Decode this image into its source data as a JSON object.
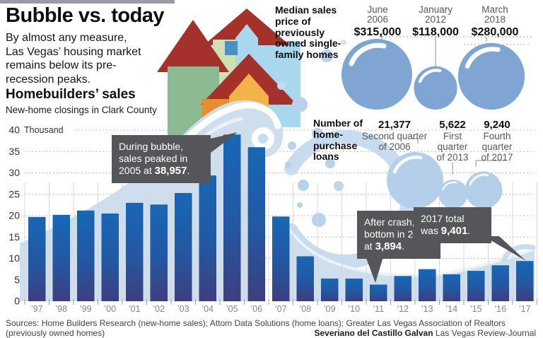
{
  "title": "Bubble vs. today",
  "subtitle": "By almost any measure, Las Vegas’ housing market remains below its pre-recession peaks.",
  "homebuilders": {
    "heading": "Homebuilders’ sales",
    "subheading": "New-home closings in Clark County"
  },
  "colors": {
    "bar_top": "#1767b6",
    "bar_bottom": "#3e3e7f",
    "price_bubble": "#7fa5d3",
    "loans_bubble": "#b5cee9",
    "annotation_bg": "#55565a",
    "roof_red": "#a5322a",
    "wave_blue": "#cfdeed"
  },
  "annotations": {
    "peak": {
      "pre": "During bubble, sales peaked in 2005 at ",
      "bold": "38,957",
      "post": "."
    },
    "crash": {
      "pre": "After crash, hit bottom in 2011 at ",
      "bold": "3,894",
      "post": "."
    },
    "current": {
      "pre": "2017 total was ",
      "bold": "9,401",
      "post": "."
    }
  },
  "chart_data": [
    {
      "type": "bar",
      "title": "Homebuilders' sales",
      "subtitle": "New-home closings in Clark County",
      "categories": [
        "’97",
        "’98",
        "’99",
        "’00",
        "’01",
        "’02",
        "’03",
        "’04",
        "’05",
        "’06",
        "’07",
        "’08",
        "’09",
        "’10",
        "’11",
        "’12",
        "’13",
        "’14",
        "’15",
        "’16",
        "’17"
      ],
      "values": [
        19.7,
        20.2,
        21.2,
        20.5,
        23.0,
        22.6,
        25.3,
        29.4,
        38.957,
        36.0,
        19.8,
        10.5,
        5.3,
        5.3,
        3.894,
        5.9,
        7.5,
        6.3,
        7.1,
        8.4,
        9.401
      ],
      "ylabel": "Thousand",
      "ylim": [
        0,
        40
      ],
      "yticks": [
        0,
        5,
        10,
        15,
        20,
        25,
        30,
        35,
        40
      ],
      "grid": "dotted horizontal",
      "annotations": [
        "During bubble, sales peaked in 2005 at 38,957.",
        "After crash, hit bottom in 2011 at 3,894.",
        "2017 total was 9,401."
      ]
    },
    {
      "type": "bubble",
      "title": "Median sales price of previously owned single-family homes",
      "points": [
        {
          "line1": "June",
          "line2": "2006",
          "value": "$315,000",
          "amount": 315000
        },
        {
          "line1": "January",
          "line2": "2012",
          "value": "$118,000",
          "amount": 118000
        },
        {
          "line1": "March",
          "line2": "2018",
          "value": "$280,000",
          "amount": 280000
        }
      ]
    },
    {
      "type": "bubble",
      "title": "Number of home-purchase loans",
      "points": [
        {
          "value": "21,377",
          "desc": "Second quarter\nof 2006",
          "amount": 21377
        },
        {
          "value": "5,622",
          "desc": "First\nquarter\nof 2013",
          "amount": 5622
        },
        {
          "value": "9,240",
          "desc": "Fourth\nquarter\nof 2017",
          "amount": 9240
        }
      ]
    }
  ],
  "median_price_label": "Median sales price of previously owned single-family homes",
  "loans_label": "Number of home-purchase loans",
  "sources": "Sources: Home Builders Research (new-home sales); Attom Data Solutions (home loans); Greater Las Vegas Association of Realtors (previously owned homes)",
  "credit_name": "Severiano del Castillo Galvan",
  "credit_org": "Las Vegas Review-Journal"
}
